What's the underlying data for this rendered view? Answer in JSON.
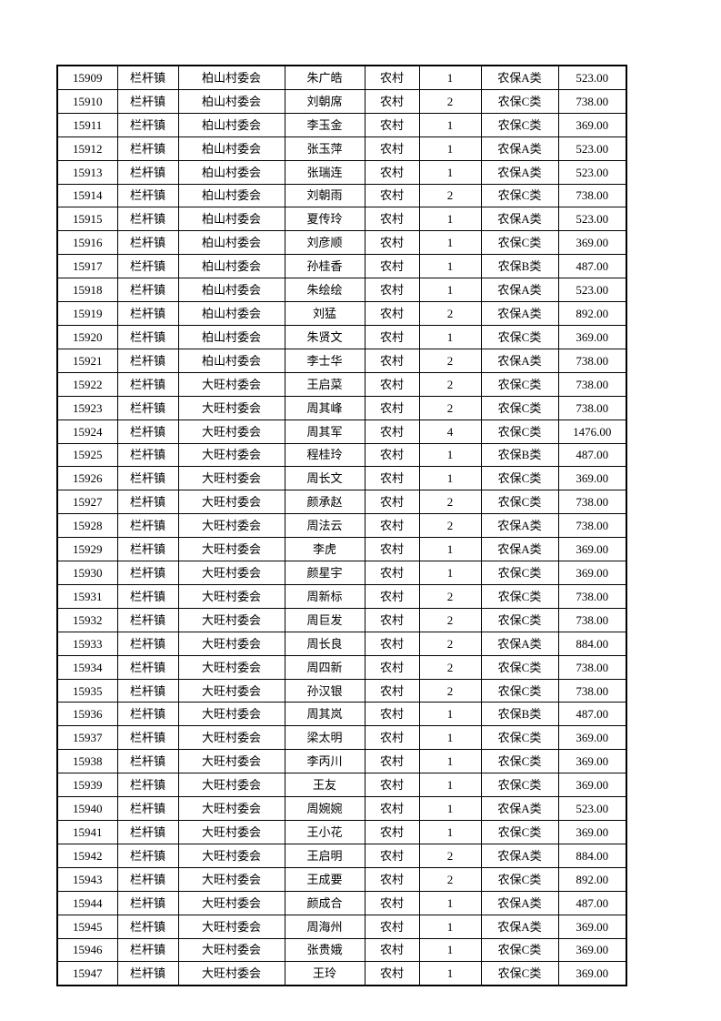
{
  "page": {
    "background_color": "#ffffff",
    "border_color": "#000000",
    "text_color": "#000000"
  },
  "table": {
    "rows": [
      [
        "15909",
        "栏杆镇",
        "柏山村委会",
        "朱广皓",
        "农村",
        "1",
        "农保A类",
        "523.00"
      ],
      [
        "15910",
        "栏杆镇",
        "柏山村委会",
        "刘朝席",
        "农村",
        "2",
        "农保C类",
        "738.00"
      ],
      [
        "15911",
        "栏杆镇",
        "柏山村委会",
        "李玉金",
        "农村",
        "1",
        "农保C类",
        "369.00"
      ],
      [
        "15912",
        "栏杆镇",
        "柏山村委会",
        "张玉萍",
        "农村",
        "1",
        "农保A类",
        "523.00"
      ],
      [
        "15913",
        "栏杆镇",
        "柏山村委会",
        "张瑞连",
        "农村",
        "1",
        "农保A类",
        "523.00"
      ],
      [
        "15914",
        "栏杆镇",
        "柏山村委会",
        "刘朝雨",
        "农村",
        "2",
        "农保C类",
        "738.00"
      ],
      [
        "15915",
        "栏杆镇",
        "柏山村委会",
        "夏传玲",
        "农村",
        "1",
        "农保A类",
        "523.00"
      ],
      [
        "15916",
        "栏杆镇",
        "柏山村委会",
        "刘彦顺",
        "农村",
        "1",
        "农保C类",
        "369.00"
      ],
      [
        "15917",
        "栏杆镇",
        "柏山村委会",
        "孙桂香",
        "农村",
        "1",
        "农保B类",
        "487.00"
      ],
      [
        "15918",
        "栏杆镇",
        "柏山村委会",
        "朱绘绘",
        "农村",
        "1",
        "农保A类",
        "523.00"
      ],
      [
        "15919",
        "栏杆镇",
        "柏山村委会",
        "刘猛",
        "农村",
        "2",
        "农保A类",
        "892.00"
      ],
      [
        "15920",
        "栏杆镇",
        "柏山村委会",
        "朱贤文",
        "农村",
        "1",
        "农保C类",
        "369.00"
      ],
      [
        "15921",
        "栏杆镇",
        "柏山村委会",
        "李士华",
        "农村",
        "2",
        "农保A类",
        "738.00"
      ],
      [
        "15922",
        "栏杆镇",
        "大旺村委会",
        "王启菜",
        "农村",
        "2",
        "农保C类",
        "738.00"
      ],
      [
        "15923",
        "栏杆镇",
        "大旺村委会",
        "周其峰",
        "农村",
        "2",
        "农保C类",
        "738.00"
      ],
      [
        "15924",
        "栏杆镇",
        "大旺村委会",
        "周其军",
        "农村",
        "4",
        "农保C类",
        "1476.00"
      ],
      [
        "15925",
        "栏杆镇",
        "大旺村委会",
        "程桂玲",
        "农村",
        "1",
        "农保B类",
        "487.00"
      ],
      [
        "15926",
        "栏杆镇",
        "大旺村委会",
        "周长文",
        "农村",
        "1",
        "农保C类",
        "369.00"
      ],
      [
        "15927",
        "栏杆镇",
        "大旺村委会",
        "颜承赵",
        "农村",
        "2",
        "农保C类",
        "738.00"
      ],
      [
        "15928",
        "栏杆镇",
        "大旺村委会",
        "周法云",
        "农村",
        "2",
        "农保A类",
        "738.00"
      ],
      [
        "15929",
        "栏杆镇",
        "大旺村委会",
        "李虎",
        "农村",
        "1",
        "农保A类",
        "369.00"
      ],
      [
        "15930",
        "栏杆镇",
        "大旺村委会",
        "颜星宇",
        "农村",
        "1",
        "农保C类",
        "369.00"
      ],
      [
        "15931",
        "栏杆镇",
        "大旺村委会",
        "周新标",
        "农村",
        "2",
        "农保C类",
        "738.00"
      ],
      [
        "15932",
        "栏杆镇",
        "大旺村委会",
        "周巨发",
        "农村",
        "2",
        "农保C类",
        "738.00"
      ],
      [
        "15933",
        "栏杆镇",
        "大旺村委会",
        "周长良",
        "农村",
        "2",
        "农保A类",
        "884.00"
      ],
      [
        "15934",
        "栏杆镇",
        "大旺村委会",
        "周四新",
        "农村",
        "2",
        "农保C类",
        "738.00"
      ],
      [
        "15935",
        "栏杆镇",
        "大旺村委会",
        "孙汉银",
        "农村",
        "2",
        "农保C类",
        "738.00"
      ],
      [
        "15936",
        "栏杆镇",
        "大旺村委会",
        "周其岚",
        "农村",
        "1",
        "农保B类",
        "487.00"
      ],
      [
        "15937",
        "栏杆镇",
        "大旺村委会",
        "梁太明",
        "农村",
        "1",
        "农保C类",
        "369.00"
      ],
      [
        "15938",
        "栏杆镇",
        "大旺村委会",
        "李丙川",
        "农村",
        "1",
        "农保C类",
        "369.00"
      ],
      [
        "15939",
        "栏杆镇",
        "大旺村委会",
        "王友",
        "农村",
        "1",
        "农保C类",
        "369.00"
      ],
      [
        "15940",
        "栏杆镇",
        "大旺村委会",
        "周婉婉",
        "农村",
        "1",
        "农保A类",
        "523.00"
      ],
      [
        "15941",
        "栏杆镇",
        "大旺村委会",
        "王小花",
        "农村",
        "1",
        "农保C类",
        "369.00"
      ],
      [
        "15942",
        "栏杆镇",
        "大旺村委会",
        "王启明",
        "农村",
        "2",
        "农保A类",
        "884.00"
      ],
      [
        "15943",
        "栏杆镇",
        "大旺村委会",
        "王成要",
        "农村",
        "2",
        "农保C类",
        "892.00"
      ],
      [
        "15944",
        "栏杆镇",
        "大旺村委会",
        "颜成合",
        "农村",
        "1",
        "农保A类",
        "487.00"
      ],
      [
        "15945",
        "栏杆镇",
        "大旺村委会",
        "周海州",
        "农村",
        "1",
        "农保A类",
        "369.00"
      ],
      [
        "15946",
        "栏杆镇",
        "大旺村委会",
        "张贵娥",
        "农村",
        "1",
        "农保C类",
        "369.00"
      ],
      [
        "15947",
        "栏杆镇",
        "大旺村委会",
        "王玲",
        "农村",
        "1",
        "农保C类",
        "369.00"
      ]
    ]
  }
}
